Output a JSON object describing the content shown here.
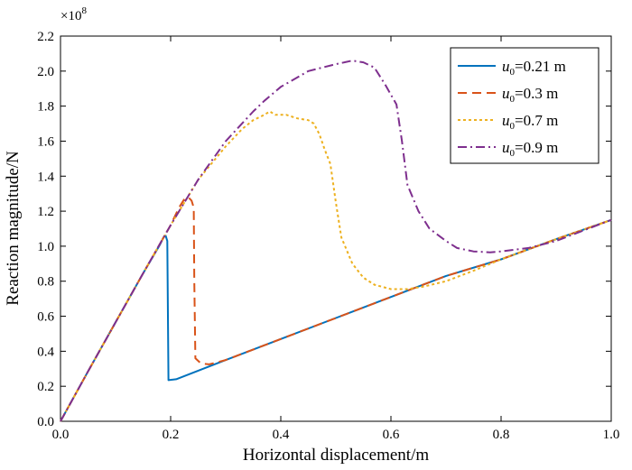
{
  "chart_data": {
    "type": "line",
    "title": "",
    "xlabel": "Horizontal displacement/m",
    "ylabel": "Reaction magnitude/N",
    "y_scale_label": "×10",
    "y_scale_exponent": "8",
    "xlim": [
      0,
      1.0
    ],
    "ylim": [
      0,
      2.2
    ],
    "x_ticks": [
      0,
      0.2,
      0.4,
      0.6,
      0.8,
      1.0
    ],
    "x_tick_labels": [
      "0.0",
      "0.2",
      "0.4",
      "0.6",
      "0.8",
      "1.0"
    ],
    "y_ticks": [
      0,
      0.2,
      0.4,
      0.6,
      0.8,
      1.0,
      1.2,
      1.4,
      1.6,
      1.8,
      2.0,
      2.2
    ],
    "y_tick_labels": [
      "0.0",
      "0.2",
      "0.4",
      "0.6",
      "0.8",
      "1.0",
      "1.2",
      "1.4",
      "1.6",
      "1.8",
      "2.0",
      "2.2"
    ],
    "grid": false,
    "legend_position": "top-right",
    "series": [
      {
        "name": "u0=0.21 m",
        "label_main": "u",
        "label_sub": "0",
        "label_rest": "=0.21 m",
        "color": "#0072BD",
        "dash": "solid",
        "x": [
          0,
          0.05,
          0.1,
          0.15,
          0.18,
          0.187,
          0.191,
          0.194,
          0.196,
          0.21,
          0.3,
          0.4,
          0.5,
          0.6,
          0.7,
          0.8,
          0.9,
          1.0
        ],
        "y": [
          0,
          0.285,
          0.565,
          0.845,
          1.005,
          1.05,
          1.06,
          1.03,
          0.235,
          0.24,
          0.35,
          0.47,
          0.59,
          0.71,
          0.83,
          0.925,
          1.04,
          1.15
        ]
      },
      {
        "name": "u0=0.3 m",
        "label_main": "u",
        "label_sub": "0",
        "label_rest": "=0.3 m",
        "color": "#D95319",
        "dash": "dashed",
        "x": [
          0,
          0.05,
          0.1,
          0.15,
          0.2,
          0.215,
          0.225,
          0.232,
          0.238,
          0.242,
          0.243,
          0.245,
          0.255,
          0.27,
          0.3,
          0.4,
          0.5,
          0.6,
          0.7,
          0.8,
          0.9,
          1.0
        ],
        "y": [
          0,
          0.285,
          0.565,
          0.845,
          1.12,
          1.22,
          1.27,
          1.28,
          1.26,
          1.22,
          0.8,
          0.36,
          0.33,
          0.325,
          0.35,
          0.47,
          0.59,
          0.71,
          0.83,
          0.925,
          1.04,
          1.15
        ]
      },
      {
        "name": "u0=0.7 m",
        "label_main": "u",
        "label_sub": "0",
        "label_rest": "=0.7 m",
        "color": "#EDB120",
        "dash": "dotted",
        "x": [
          0,
          0.05,
          0.1,
          0.15,
          0.2,
          0.25,
          0.3,
          0.33,
          0.35,
          0.37,
          0.38,
          0.39,
          0.41,
          0.43,
          0.45,
          0.46,
          0.47,
          0.48,
          0.49,
          0.5,
          0.51,
          0.53,
          0.55,
          0.57,
          0.6,
          0.63,
          0.66,
          0.7,
          0.75,
          0.8,
          0.9,
          1.0
        ],
        "y": [
          0,
          0.285,
          0.565,
          0.845,
          1.12,
          1.38,
          1.57,
          1.67,
          1.72,
          1.75,
          1.77,
          1.75,
          1.75,
          1.73,
          1.72,
          1.7,
          1.64,
          1.55,
          1.47,
          1.25,
          1.05,
          0.9,
          0.82,
          0.78,
          0.755,
          0.755,
          0.77,
          0.8,
          0.86,
          0.925,
          1.04,
          1.15
        ]
      },
      {
        "name": "u0=0.9 m",
        "label_main": "u",
        "label_sub": "0",
        "label_rest": "=0.9 m",
        "color": "#7E2F8E",
        "dash": "dashdot",
        "x": [
          0,
          0.05,
          0.1,
          0.15,
          0.2,
          0.25,
          0.3,
          0.35,
          0.37,
          0.4,
          0.45,
          0.5,
          0.53,
          0.55,
          0.57,
          0.59,
          0.61,
          0.62,
          0.63,
          0.65,
          0.67,
          0.7,
          0.72,
          0.75,
          0.78,
          0.8,
          0.85,
          0.9,
          0.95,
          1.0
        ],
        "y": [
          0,
          0.285,
          0.565,
          0.845,
          1.12,
          1.38,
          1.6,
          1.77,
          1.83,
          1.91,
          2.0,
          2.04,
          2.06,
          2.05,
          2.02,
          1.92,
          1.81,
          1.6,
          1.35,
          1.2,
          1.1,
          1.03,
          0.99,
          0.97,
          0.965,
          0.97,
          0.99,
          1.03,
          1.09,
          1.15
        ]
      }
    ]
  }
}
